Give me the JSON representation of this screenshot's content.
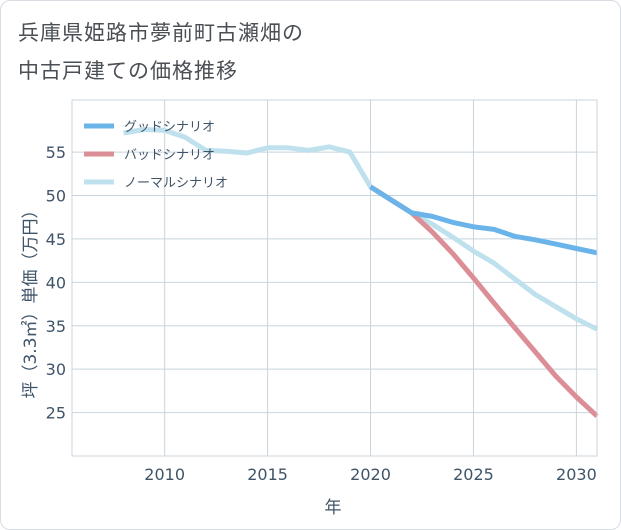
{
  "title_line1": "兵庫県姫路市夢前町古瀬畑の",
  "title_line2": "中古戸建ての価格推移",
  "chart_data": {
    "type": "line",
    "xlabel": "年",
    "ylabel": "坪（3.3㎡）単価（万円）",
    "xlim": [
      2005.5,
      2031
    ],
    "ylim": [
      20,
      61
    ],
    "xticks": [
      2010,
      2015,
      2020,
      2025,
      2030
    ],
    "yticks": [
      25,
      30,
      35,
      40,
      45,
      50,
      55
    ],
    "grid": true,
    "legend_position": "top-left",
    "series": [
      {
        "name": "グッドシナリオ",
        "color": "#6ab4ea",
        "x": [
          2020,
          2021,
          2022,
          2023,
          2024,
          2025,
          2026,
          2027,
          2028,
          2029,
          2030,
          2031
        ],
        "values": [
          51.0,
          49.5,
          48.0,
          47.6,
          46.9,
          46.4,
          46.1,
          45.3,
          44.9,
          44.4,
          43.9,
          43.4
        ]
      },
      {
        "name": "バッドシナリオ",
        "color": "#dc8e96",
        "x": [
          2020,
          2021,
          2022,
          2023,
          2024,
          2025,
          2026,
          2027,
          2028,
          2029,
          2030,
          2031
        ],
        "values": [
          51.0,
          49.5,
          48.0,
          45.8,
          43.3,
          40.5,
          37.6,
          34.8,
          32.0,
          29.2,
          26.8,
          24.6
        ]
      },
      {
        "name": "ノーマルシナリオ",
        "color": "#bfe1ee",
        "x": [
          2008,
          2009,
          2010,
          2011,
          2012,
          2013,
          2014,
          2015,
          2016,
          2017,
          2018,
          2019,
          2020,
          2021,
          2022,
          2023,
          2024,
          2025,
          2026,
          2027,
          2028,
          2029,
          2030,
          2031
        ],
        "values": [
          57.2,
          57.6,
          57.5,
          56.7,
          55.2,
          55.1,
          54.9,
          55.5,
          55.5,
          55.2,
          55.6,
          55.0,
          51.0,
          49.5,
          48.0,
          46.7,
          45.2,
          43.6,
          42.2,
          40.4,
          38.6,
          37.2,
          35.8,
          34.6
        ]
      }
    ]
  }
}
